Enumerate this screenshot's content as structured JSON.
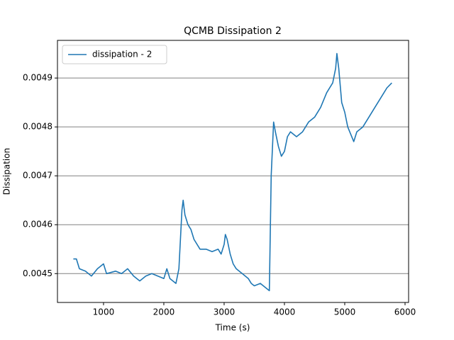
{
  "chart_data": {
    "type": "line",
    "title": "QCMB Dissipation 2",
    "xlabel": "Time (s)",
    "ylabel": "Dissipation",
    "x": [
      500,
      550,
      600,
      700,
      800,
      900,
      1000,
      1050,
      1200,
      1300,
      1400,
      1500,
      1600,
      1700,
      1800,
      1900,
      2000,
      2050,
      2100,
      2200,
      2250,
      2300,
      2320,
      2350,
      2400,
      2450,
      2500,
      2600,
      2700,
      2800,
      2900,
      2950,
      3000,
      3020,
      3050,
      3100,
      3150,
      3200,
      3300,
      3400,
      3450,
      3500,
      3600,
      3700,
      3750,
      3780,
      3820,
      3850,
      3900,
      3950,
      4000,
      4050,
      4100,
      4200,
      4300,
      4400,
      4500,
      4600,
      4700,
      4800,
      4850,
      4870,
      4900,
      4950,
      5000,
      5050,
      5150,
      5200,
      5300,
      5400,
      5500,
      5600,
      5700,
      5780
    ],
    "series": [
      {
        "name": "dissipation - 2",
        "color": "#1f77b4",
        "values": [
          0.00453,
          0.00453,
          0.00451,
          0.004505,
          0.004495,
          0.00451,
          0.00452,
          0.0045,
          0.004505,
          0.0045,
          0.00451,
          0.004495,
          0.004485,
          0.004495,
          0.0045,
          0.004495,
          0.00449,
          0.00451,
          0.00449,
          0.00448,
          0.00451,
          0.00463,
          0.00465,
          0.00462,
          0.0046,
          0.00459,
          0.00457,
          0.00455,
          0.00455,
          0.004545,
          0.00455,
          0.00454,
          0.00456,
          0.00458,
          0.00457,
          0.00454,
          0.00452,
          0.00451,
          0.0045,
          0.00449,
          0.00448,
          0.004475,
          0.00448,
          0.00447,
          0.004465,
          0.0047,
          0.00481,
          0.00479,
          0.00476,
          0.00474,
          0.00475,
          0.00478,
          0.00479,
          0.00478,
          0.00479,
          0.00481,
          0.00482,
          0.00484,
          0.00487,
          0.00489,
          0.00492,
          0.00495,
          0.00492,
          0.00485,
          0.00483,
          0.0048,
          0.00477,
          0.00479,
          0.0048,
          0.00482,
          0.00484,
          0.00486,
          0.00488,
          0.00489
        ]
      }
    ],
    "xlim": [
      236,
      6059
    ],
    "xticks": [
      1000,
      2000,
      3000,
      4000,
      5000,
      6000
    ],
    "ylim": [
      0.004441,
      0.004977
    ],
    "yticks": [
      0.0045,
      0.0046,
      0.0047,
      0.0048,
      0.0049
    ],
    "grid": "y",
    "legend": "upper-left"
  }
}
